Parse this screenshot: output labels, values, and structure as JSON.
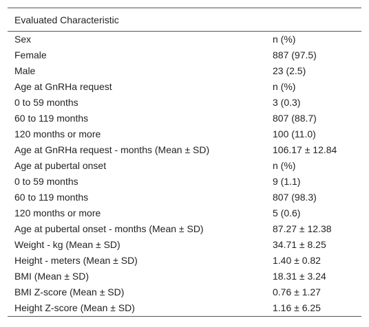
{
  "header": {
    "title": "Evaluated Characteristic"
  },
  "table": {
    "rows": [
      [
        "Sex",
        "n (%)"
      ],
      [
        "Female",
        "887 (97.5)"
      ],
      [
        "Male",
        "23 (2.5)"
      ],
      [
        "Age at GnRHa request",
        "n (%)"
      ],
      [
        "0 to 59 months",
        "3 (0.3)"
      ],
      [
        "60 to 119 months",
        "807 (88.7)"
      ],
      [
        "120 months or more",
        "100 (11.0)"
      ],
      [
        "Age at GnRHa request - months (Mean ± SD)",
        "106.17 ± 12.84"
      ],
      [
        "Age at pubertal onset",
        "n (%)"
      ],
      [
        "0 to 59 months",
        "9 (1.1)"
      ],
      [
        "60 to 119 months",
        "807 (98.3)"
      ],
      [
        "120 months or more",
        "5 (0.6)"
      ],
      [
        "Age at pubertal onset - months (Mean ± SD)",
        "87.27 ± 12.38"
      ],
      [
        "Weight - kg (Mean ± SD)",
        "34.71 ± 8.25"
      ],
      [
        "Height - meters (Mean ± SD)",
        "1.40 ± 0.82"
      ],
      [
        "BMI (Mean ± SD)",
        "18.31 ± 3.24"
      ],
      [
        "BMI Z-score (Mean ± SD)",
        "0.76 ± 1.27"
      ],
      [
        "Height Z-score (Mean ± SD)",
        "1.16 ± 6.25"
      ]
    ]
  }
}
